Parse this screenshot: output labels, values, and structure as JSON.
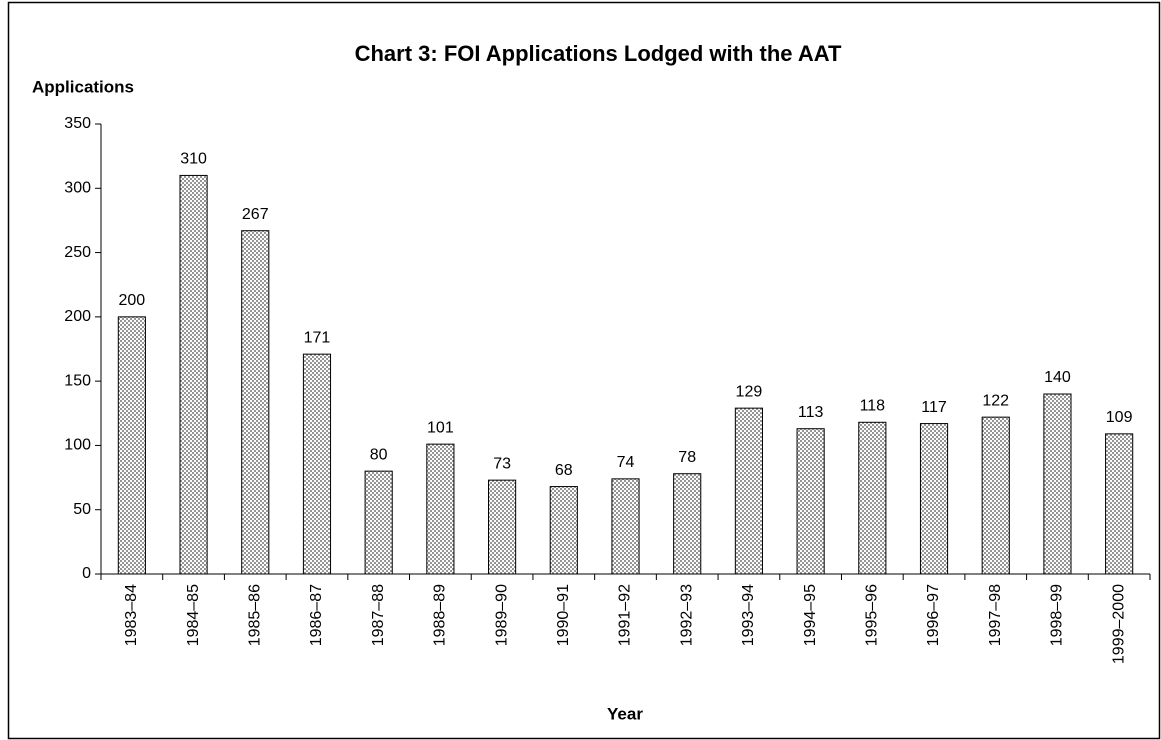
{
  "chart_data": {
    "type": "bar",
    "title": "Chart 3: FOI Applications Lodged with the AAT",
    "ylabel": "Applications",
    "xlabel": "Year",
    "categories": [
      "1983–84",
      "1984–85",
      "1985–86",
      "1986–87",
      "1987–88",
      "1988–89",
      "1989–90",
      "1990–91",
      "1991–92",
      "1992–93",
      "1993–94",
      "1994–95",
      "1995–96",
      "1996–97",
      "1997–98",
      "1998–99",
      "1999–2000"
    ],
    "values": [
      200,
      310,
      267,
      171,
      80,
      101,
      73,
      68,
      74,
      78,
      129,
      113,
      118,
      117,
      122,
      140,
      109
    ],
    "color": "#8c8c8c",
    "ylim": [
      0,
      350
    ],
    "yticks": [
      0,
      50,
      100,
      150,
      200,
      250,
      300,
      350
    ],
    "grid": false
  }
}
